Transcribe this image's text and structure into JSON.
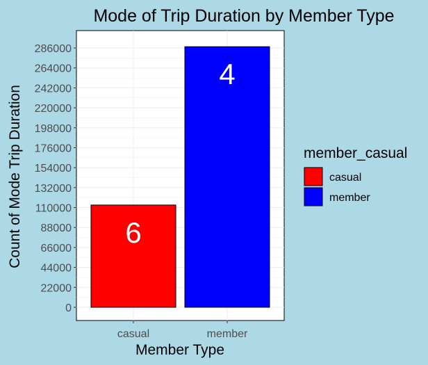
{
  "chart_data": {
    "type": "bar",
    "title": "Mode of Trip Duration by Member Type",
    "xlabel": "Member Type",
    "ylabel": "Count of Mode Trip Duration",
    "categories": [
      "casual",
      "member"
    ],
    "values": [
      112800,
      287400
    ],
    "data_labels": [
      "6",
      "4"
    ],
    "colors": [
      "#ff0000",
      "#0000ff"
    ],
    "ylim": [
      0,
      286000
    ],
    "yticks": [
      0,
      22000,
      44000,
      66000,
      88000,
      110000,
      132000,
      154000,
      176000,
      198000,
      220000,
      242000,
      264000,
      286000
    ],
    "grid": true,
    "legend": {
      "title": "member_casual",
      "entries": [
        "casual",
        "member"
      ],
      "position": "right"
    }
  }
}
